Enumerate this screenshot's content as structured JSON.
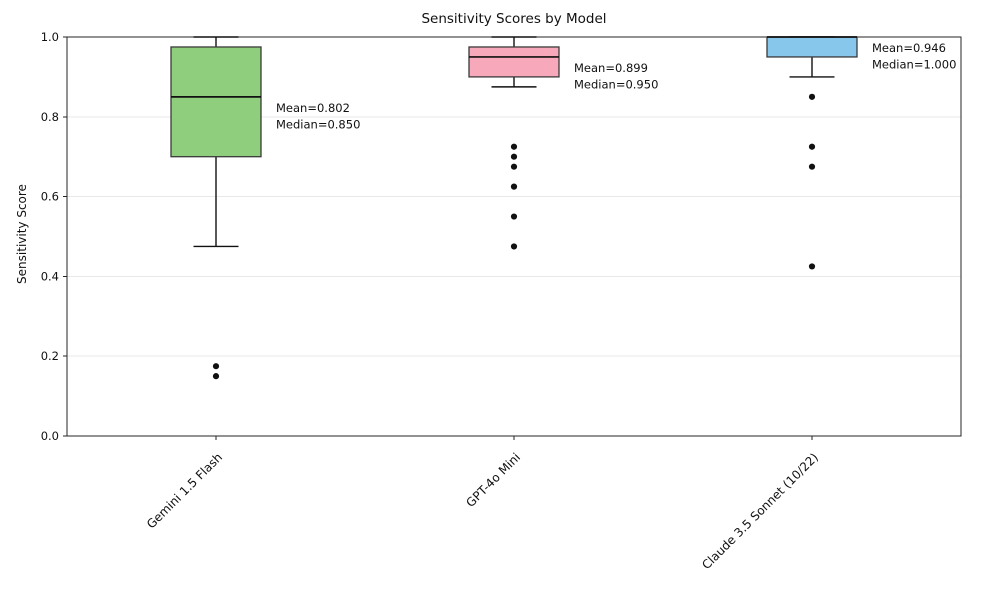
{
  "chart_data": {
    "type": "boxplot",
    "title": "Sensitivity Scores by Model",
    "ylabel": "Sensitivity Score",
    "xlabel": "",
    "ylim": [
      0.0,
      1.0
    ],
    "ytick_labels": [
      "0.0",
      "0.2",
      "0.4",
      "0.6",
      "0.8",
      "1.0"
    ],
    "ytick_values": [
      0.0,
      0.2,
      0.4,
      0.6,
      0.8,
      1.0
    ],
    "grid": {
      "axis": "y",
      "color": "#e8e8e8",
      "on": true
    },
    "axis_color": "#262626",
    "outlier_color": "#111111",
    "categories": [
      "Gemini 1.5 Flash",
      "GPT-4o Mini",
      "Claude 3.5 Sonnet (10/22)"
    ],
    "series": [
      {
        "label": "Gemini 1.5 Flash",
        "box_color": "#8FCE7D",
        "whisker_low": 0.475,
        "q1": 0.7,
        "median": 0.85,
        "q3": 0.975,
        "whisker_high": 1.0,
        "outliers": [
          0.175,
          0.15
        ],
        "mean": 0.802,
        "annotation_lines": [
          "Mean=0.802",
          "Median=0.850"
        ]
      },
      {
        "label": "GPT-4o Mini",
        "box_color": "#F8A8BB",
        "whisker_low": 0.875,
        "q1": 0.9,
        "median": 0.95,
        "q3": 0.975,
        "whisker_high": 1.0,
        "outliers": [
          0.725,
          0.7,
          0.675,
          0.625,
          0.55,
          0.475
        ],
        "mean": 0.899,
        "annotation_lines": [
          "Mean=0.899",
          "Median=0.950"
        ]
      },
      {
        "label": "Claude 3.5 Sonnet (10/22)",
        "box_color": "#87C7EB",
        "whisker_low": 0.9,
        "q1": 0.95,
        "median": 1.0,
        "q3": 1.0,
        "whisker_high": 1.0,
        "outliers": [
          0.85,
          0.725,
          0.675,
          0.425
        ],
        "mean": 0.946,
        "annotation_lines": [
          "Mean=0.946",
          "Median=1.000"
        ]
      }
    ]
  }
}
